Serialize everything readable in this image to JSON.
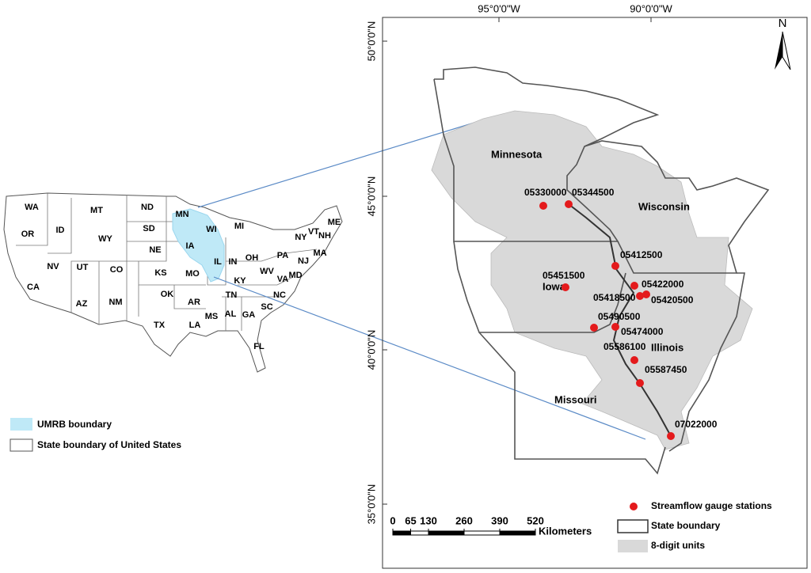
{
  "us_map": {
    "states": [
      "WA",
      "MT",
      "ND",
      "MN",
      "ME",
      "OR",
      "ID",
      "SD",
      "WI",
      "MI",
      "NY",
      "VT",
      "NH",
      "WY",
      "MA",
      "NV",
      "UT",
      "CO",
      "NE",
      "IA",
      "IL",
      "IN",
      "OH",
      "PA",
      "NJ",
      "CA",
      "KS",
      "MO",
      "KY",
      "WV",
      "VA",
      "MD",
      "AZ",
      "NM",
      "OK",
      "AR",
      "TN",
      "NC",
      "SC",
      "TX",
      "MS",
      "AL",
      "GA",
      "LA",
      "FL"
    ],
    "legend": [
      "UMRB boundary",
      "State boundary of United States"
    ]
  },
  "study_map": {
    "longitude_labels": [
      "95°0'0\"W",
      "90°0'0\"W"
    ],
    "latitude_labels": [
      "50°0'0\"N",
      "45°0'0\"N",
      "40°0'0\"N",
      "35°0'0\"N"
    ],
    "north": "N",
    "states": [
      "Minnesota",
      "Wisconsin",
      "Iowa",
      "Illinois",
      "Missouri"
    ],
    "stations": [
      "05330000",
      "05344500",
      "05412500",
      "05451500",
      "05422000",
      "05418500",
      "05420500",
      "05490500",
      "05474000",
      "05586100",
      "05587450",
      "07022000"
    ],
    "legend": [
      "Streamflow gauge stations",
      "State boundary",
      "8-digit units"
    ],
    "scale_bar": {
      "ticks": [
        0,
        65,
        130,
        260,
        390,
        520
      ],
      "unit": "Kilometers"
    }
  }
}
